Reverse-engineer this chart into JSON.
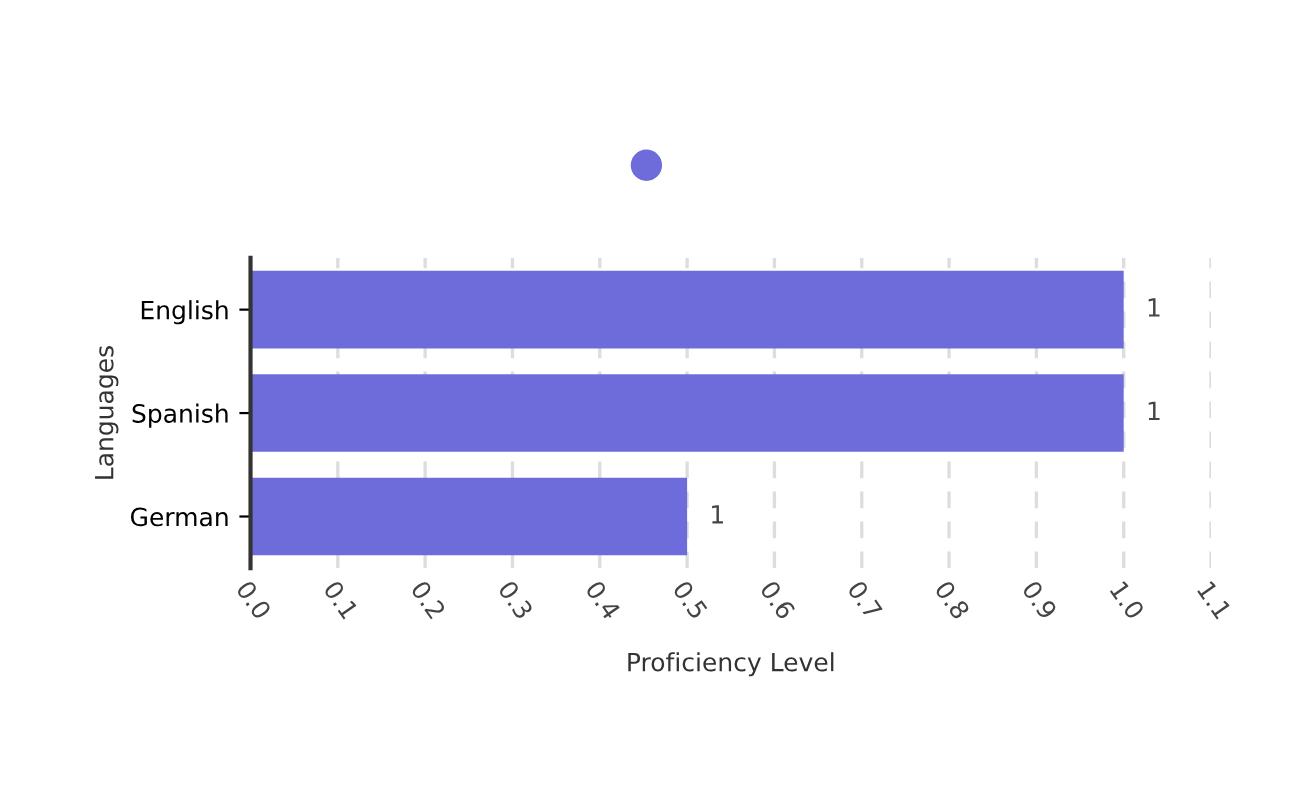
{
  "chart_data": {
    "type": "bar",
    "orientation": "horizontal",
    "xlabel": "Proficiency Level",
    "ylabel": "Languages",
    "categories": [
      "English",
      "Spanish",
      "German"
    ],
    "series": [
      {
        "color": "#6e6cdb",
        "values": [
          1.0,
          1.0,
          0.5
        ],
        "value_labels": [
          "1",
          "1",
          "1"
        ]
      }
    ],
    "xlim": [
      0.0,
      1.1
    ],
    "xticks": [
      {
        "value": 0,
        "label": "0.0"
      },
      0.1,
      0.2,
      0.3,
      0.4,
      0.5,
      0.6,
      0.7,
      0.8,
      0.9,
      {
        "value": 1,
        "label": "1.0"
      },
      1.1
    ],
    "grid": "x"
  }
}
